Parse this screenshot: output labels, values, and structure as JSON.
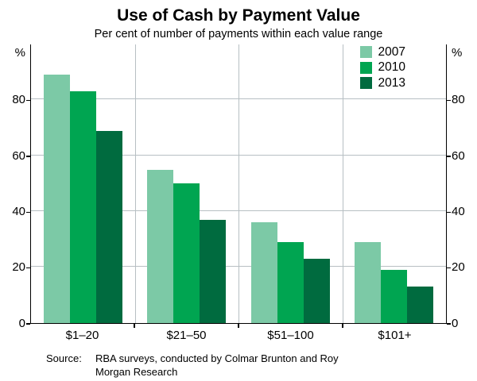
{
  "title": "Use of Cash by Payment Value",
  "subtitle": "Per cent of number of payments within each value range",
  "y_axis_unit": "%",
  "source": {
    "label": "Source:",
    "text": "RBA surveys, conducted by Colmar Brunton and Roy Morgan Research"
  },
  "chart_data": {
    "type": "bar",
    "title": "Use of Cash by Payment Value",
    "subtitle": "Per cent of number of payments within each value range",
    "categories": [
      "$1–20",
      "$21–50",
      "$51–100",
      "$101+"
    ],
    "series": [
      {
        "name": "2007",
        "color": "#7CC9A6",
        "values": [
          89,
          55,
          36,
          29
        ]
      },
      {
        "name": "2010",
        "color": "#00A551",
        "values": [
          83,
          50,
          29,
          19
        ]
      },
      {
        "name": "2013",
        "color": "#006B3F",
        "values": [
          69,
          37,
          23,
          13
        ]
      }
    ],
    "ylabel": "%",
    "ylim": [
      0,
      100
    ],
    "yticks": [
      0,
      20,
      40,
      60,
      80
    ],
    "grid": true,
    "legend_position": "top-right"
  }
}
